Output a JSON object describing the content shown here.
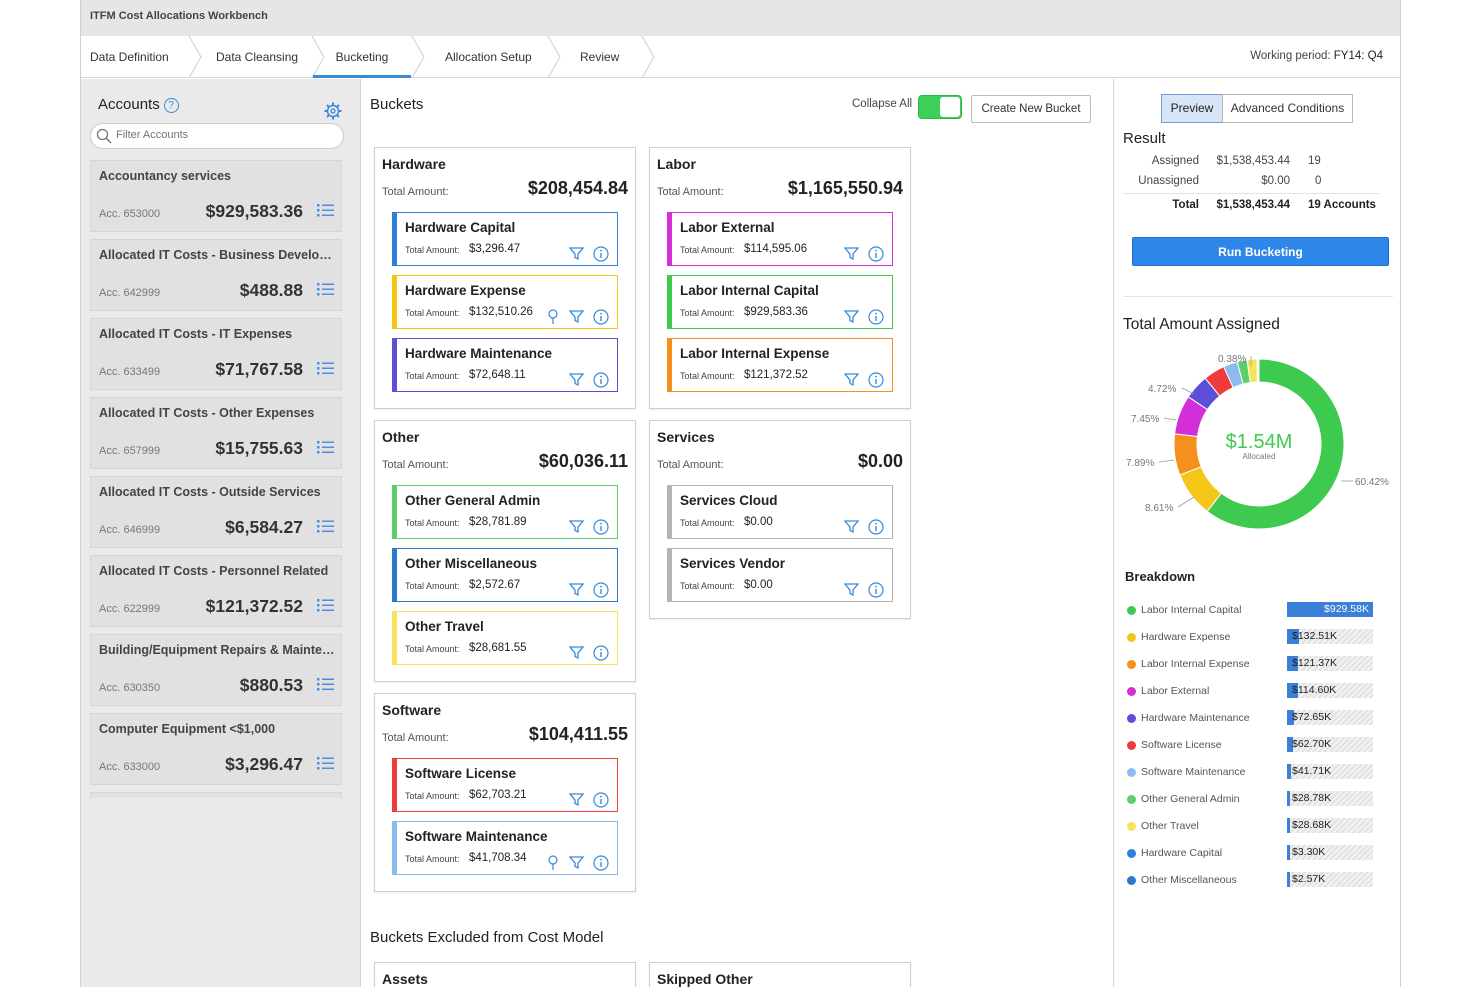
{
  "app": {
    "title": "ITFM Cost Allocations Workbench"
  },
  "steps": [
    {
      "label": "Data Definition"
    },
    {
      "label": "Data Cleansing"
    },
    {
      "label": "Bucketing"
    },
    {
      "label": "Allocation Setup"
    },
    {
      "label": "Review"
    }
  ],
  "active_step": "Bucketing",
  "working_period": {
    "label": "Working period:",
    "value": "FY14: Q4"
  },
  "accounts": {
    "title": "Accounts",
    "help": "?",
    "filter_placeholder": "Filter Accounts",
    "items": [
      {
        "name": "Accountancy services",
        "acc": "Acc. 653000",
        "amount": "$929,583.36"
      },
      {
        "name": "Allocated IT Costs - Business Development",
        "acc": "Acc. 642999",
        "amount": "$488.88"
      },
      {
        "name": "Allocated IT Costs - IT Expenses",
        "acc": "Acc. 633499",
        "amount": "$71,767.58"
      },
      {
        "name": "Allocated IT Costs - Other Expenses",
        "acc": "Acc. 657999",
        "amount": "$15,755.63"
      },
      {
        "name": "Allocated IT Costs - Outside Services",
        "acc": "Acc. 646999",
        "amount": "$6,584.27"
      },
      {
        "name": "Allocated IT Costs - Personnel Related",
        "acc": "Acc. 622999",
        "amount": "$121,372.52"
      },
      {
        "name": "Building/Equipment Repairs & Maintenance",
        "acc": "Acc. 630350",
        "amount": "$880.53"
      },
      {
        "name": "Computer Equipment <$1,000",
        "acc": "Acc. 633000",
        "amount": "$3,296.47"
      }
    ]
  },
  "buckets": {
    "title": "Buckets",
    "collapse_label": "Collapse All",
    "collapse_on": true,
    "create_label": "Create New Bucket",
    "total_label": "Total Amount:",
    "groups": [
      {
        "name": "Hardware",
        "total": "$208,454.84",
        "items": [
          {
            "name": "Hardware Capital",
            "amount": "$3,296.47",
            "color": "#2f7fd9",
            "pin": false
          },
          {
            "name": "Hardware Expense",
            "amount": "$132,510.26",
            "color": "#f5c518",
            "pin": true
          },
          {
            "name": "Hardware Maintenance",
            "amount": "$72,648.11",
            "color": "#5b4fd8",
            "pin": false
          }
        ]
      },
      {
        "name": "Labor",
        "total": "$1,165,550.94",
        "items": [
          {
            "name": "Labor External",
            "amount": "$114,595.06",
            "color": "#d22fd8",
            "pin": false
          },
          {
            "name": "Labor Internal Capital",
            "amount": "$929,583.36",
            "color": "#3ec94f",
            "pin": false
          },
          {
            "name": "Labor Internal Expense",
            "amount": "$121,372.52",
            "color": "#f5901e",
            "pin": false
          }
        ]
      },
      {
        "name": "Other",
        "total": "$60,036.11",
        "items": [
          {
            "name": "Other General Admin",
            "amount": "$28,781.89",
            "color": "#5ccf6a",
            "pin": false
          },
          {
            "name": "Other Miscellaneous",
            "amount": "$2,572.67",
            "color": "#2b79c9",
            "pin": false
          },
          {
            "name": "Other Travel",
            "amount": "$28,681.55",
            "color": "#f7e45a",
            "pin": false
          }
        ]
      },
      {
        "name": "Services",
        "total": "$0.00",
        "items": [
          {
            "name": "Services Cloud",
            "amount": "$0.00",
            "color": "#b5b5b5",
            "pin": false
          },
          {
            "name": "Services Vendor",
            "amount": "$0.00",
            "color": "#b5b5b5",
            "pin": false
          }
        ]
      },
      {
        "name": "Software",
        "total": "$104,411.55",
        "items": [
          {
            "name": "Software License",
            "amount": "$62,703.21",
            "color": "#ef3b3b",
            "pin": false
          },
          {
            "name": "Software Maintenance",
            "amount": "$41,708.34",
            "color": "#8bbcf0",
            "pin": true
          }
        ]
      }
    ],
    "excluded_title": "Buckets Excluded from Cost Model",
    "excluded": [
      {
        "name": "Assets"
      },
      {
        "name": "Skipped Other"
      }
    ]
  },
  "right": {
    "tabs": [
      {
        "label": "Preview"
      },
      {
        "label": "Advanced Conditions"
      }
    ],
    "active_tab": "Preview",
    "result_title": "Result",
    "rows": [
      {
        "label": "Assigned",
        "amount": "$1,538,453.44",
        "count": "19"
      },
      {
        "label": "Unassigned",
        "amount": "$0.00",
        "count": "0"
      },
      {
        "label": "Total",
        "amount": "$1,538,453.44",
        "count": "19 Accounts"
      }
    ],
    "run_label": "Run Bucketing",
    "chart_title": "Total Amount Assigned",
    "center_value": "$1.54M",
    "center_label": "Allocated",
    "breakdown_title": "Breakdown"
  },
  "chart_data": {
    "type": "pie",
    "title": "Total Amount Assigned",
    "center_value": "$1.54M",
    "center_label": "Allocated",
    "percent_labels": [
      "0.38%",
      "4.72%",
      "7.45%",
      "7.89%",
      "8.61%",
      "60.42%"
    ],
    "categories": [
      "Labor Internal Capital",
      "Hardware Expense",
      "Labor Internal Expense",
      "Labor External",
      "Hardware Maintenance",
      "Software License",
      "Software Maintenance",
      "Other General Admin",
      "Other Travel",
      "Hardware Capital",
      "Other Miscellaneous"
    ],
    "values": [
      929.58,
      132.51,
      121.37,
      114.6,
      72.65,
      62.7,
      41.71,
      28.78,
      28.68,
      3.3,
      2.57
    ],
    "value_labels": [
      "$929.58K",
      "$132.51K",
      "$121.37K",
      "$114.60K",
      "$72.65K",
      "$62.70K",
      "$41.71K",
      "$28.78K",
      "$28.68K",
      "$3.30K",
      "$2.57K"
    ],
    "colors": [
      "#3ec94f",
      "#f5c518",
      "#f5901e",
      "#d22fd8",
      "#5b4fd8",
      "#ef3b3b",
      "#8bbcf0",
      "#5ccf6a",
      "#f7e45a",
      "#2f7fd9",
      "#2b79c9"
    ],
    "max": 929.58
  }
}
